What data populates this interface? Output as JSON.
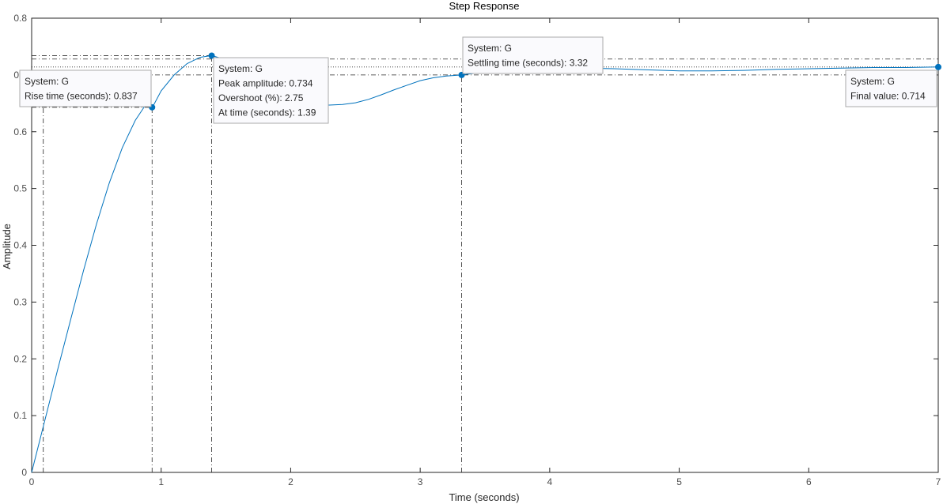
{
  "chart_data": {
    "type": "line",
    "title": "Step Response",
    "xlabel": "Time (seconds)",
    "ylabel": "Amplitude",
    "xlim": [
      0,
      7
    ],
    "ylim": [
      0,
      0.8
    ],
    "xticks": [
      "0",
      "1",
      "2",
      "3",
      "4",
      "5",
      "6",
      "7"
    ],
    "yticks": [
      "0",
      "0.1",
      "0.2",
      "0.3",
      "0.4",
      "0.5",
      "0.6",
      "0.7",
      "0.8"
    ],
    "grid": false,
    "line_color": "#0072bd",
    "series": [
      {
        "x": [
          0,
          0.1,
          0.2,
          0.3,
          0.4,
          0.5,
          0.6,
          0.7,
          0.8,
          0.9,
          0.93,
          1.0,
          1.1,
          1.2,
          1.3,
          1.39,
          1.5,
          1.6,
          1.7,
          1.8,
          1.9,
          2.0,
          2.1,
          2.2,
          2.3,
          2.4,
          2.5,
          2.6,
          2.7,
          2.8,
          2.9,
          3.0,
          3.1,
          3.2,
          3.32,
          3.5,
          3.75,
          4.0,
          4.25,
          4.5,
          4.75,
          5.0,
          5.25,
          5.5,
          5.75,
          6.0,
          6.25,
          6.5,
          6.75,
          7.0
        ],
        "values": [
          0,
          0.09,
          0.18,
          0.268,
          0.355,
          0.437,
          0.51,
          0.572,
          0.62,
          0.654,
          0.642,
          0.672,
          0.7,
          0.72,
          0.731,
          0.734,
          0.727,
          0.712,
          0.692,
          0.673,
          0.659,
          0.651,
          0.648,
          0.647,
          0.647,
          0.648,
          0.651,
          0.657,
          0.665,
          0.674,
          0.682,
          0.69,
          0.695,
          0.698,
          0.7,
          0.705,
          0.709,
          0.711,
          0.712,
          0.711,
          0.709,
          0.707,
          0.707,
          0.708,
          0.71,
          0.711,
          0.712,
          0.713,
          0.713,
          0.714
        ]
      }
    ],
    "reference_lines": {
      "rise_start_time": 0.09,
      "rise_end_time": 0.93,
      "rise_low_amplitude": 0.643,
      "peak_time": 1.39,
      "peak_amplitude": 0.734,
      "settling_time": 3.32,
      "upper_band": 0.728,
      "lower_band": 0.7,
      "final_value": 0.714
    },
    "markers": [
      {
        "x": 0.93,
        "y": 0.643
      },
      {
        "x": 1.39,
        "y": 0.734
      },
      {
        "x": 3.32,
        "y": 0.7
      },
      {
        "x": 7.0,
        "y": 0.714
      }
    ],
    "datatips": [
      {
        "name": "rise-time-tip",
        "lines": [
          "System: G",
          "Rise time (seconds): 0.837"
        ]
      },
      {
        "name": "peak-tip",
        "lines": [
          "System: G",
          "Peak amplitude: 0.734",
          "Overshoot (%): 2.75",
          "At time (seconds): 1.39"
        ]
      },
      {
        "name": "settling-time-tip",
        "lines": [
          "System: G",
          "Settling time (seconds): 3.32"
        ]
      },
      {
        "name": "final-value-tip",
        "lines": [
          "System: G",
          "Final value: 0.714"
        ]
      }
    ]
  }
}
